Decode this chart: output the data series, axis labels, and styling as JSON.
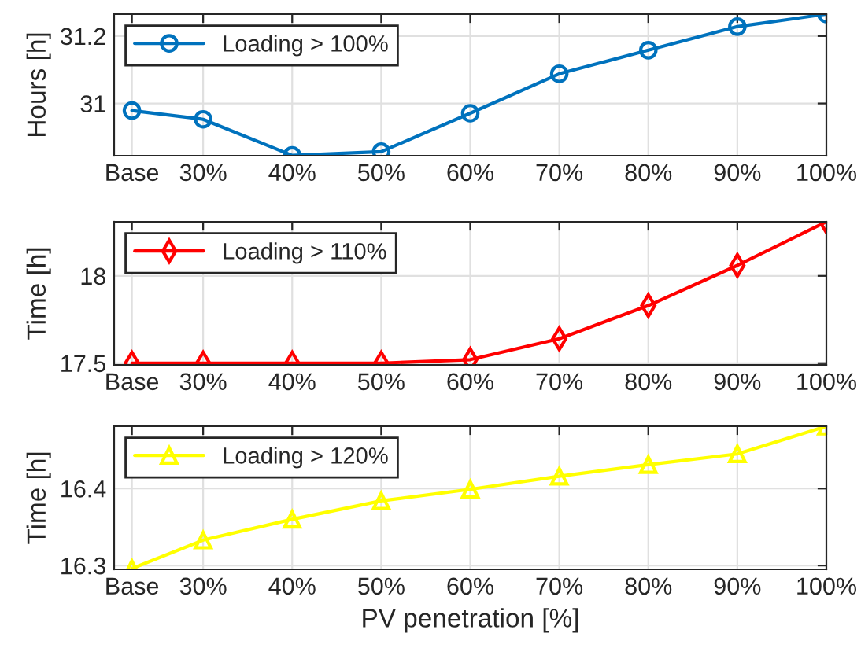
{
  "chart_data": [
    {
      "type": "line",
      "ylabel": "Hours [h]",
      "x": [
        22,
        30,
        40,
        50,
        60,
        70,
        80,
        90,
        100
      ],
      "series": [
        {
          "name": "Loading > 100%",
          "color": "#0072bd",
          "values": [
            30.979,
            30.953,
            30.846,
            30.857,
            30.971,
            31.088,
            31.158,
            31.228,
            31.265
          ]
        }
      ],
      "xlim": [
        20,
        100
      ],
      "xticks": [
        {
          "value": 22,
          "label": "Base"
        },
        {
          "value": 30,
          "label": "30%"
        },
        {
          "value": 40,
          "label": "40%"
        },
        {
          "value": 50,
          "label": "50%"
        },
        {
          "value": 60,
          "label": "60%"
        },
        {
          "value": 70,
          "label": "70%"
        },
        {
          "value": 80,
          "label": "80%"
        },
        {
          "value": 90,
          "label": "90%"
        },
        {
          "value": 100,
          "label": "100%"
        }
      ],
      "ylim": [
        30.845,
        31.265
      ],
      "yticks": [
        31,
        31.2
      ],
      "grid": true,
      "legend": "top left",
      "marker": "circle",
      "line_style": "solid"
    },
    {
      "type": "line",
      "ylabel": "Time [h]",
      "x": [
        22,
        30,
        40,
        50,
        60,
        70,
        80,
        90,
        100
      ],
      "series": [
        {
          "name": "Loading > 110%",
          "color": "#ff0000",
          "values": [
            17.5,
            17.5,
            17.5,
            17.5,
            17.52,
            17.64,
            17.83,
            18.06,
            18.31
          ]
        }
      ],
      "xlim": [
        20,
        100
      ],
      "xticks": [
        {
          "value": 22,
          "label": "Base"
        },
        {
          "value": 30,
          "label": "30%"
        },
        {
          "value": 40,
          "label": "40%"
        },
        {
          "value": 50,
          "label": "50%"
        },
        {
          "value": 60,
          "label": "60%"
        },
        {
          "value": 70,
          "label": "70%"
        },
        {
          "value": 80,
          "label": "80%"
        },
        {
          "value": 90,
          "label": "90%"
        },
        {
          "value": 100,
          "label": "100%"
        }
      ],
      "ylim": [
        17.49,
        18.31
      ],
      "yticks": [
        17.5,
        18
      ],
      "grid": true,
      "legend": "top left",
      "marker": "diamond",
      "line_style": "solid"
    },
    {
      "type": "line",
      "xlabel": "PV penetration [%]",
      "ylabel": "Time [h]",
      "x": [
        22,
        30,
        40,
        50,
        60,
        70,
        80,
        90,
        100
      ],
      "series": [
        {
          "name": "Loading > 120%",
          "color": "#ffff00",
          "values": [
            16.296,
            16.333,
            16.36,
            16.384,
            16.399,
            16.416,
            16.431,
            16.445,
            16.481
          ]
        }
      ],
      "xlim": [
        20,
        100
      ],
      "xticks": [
        {
          "value": 22,
          "label": "Base"
        },
        {
          "value": 30,
          "label": "30%"
        },
        {
          "value": 40,
          "label": "40%"
        },
        {
          "value": 50,
          "label": "50%"
        },
        {
          "value": 60,
          "label": "60%"
        },
        {
          "value": 70,
          "label": "70%"
        },
        {
          "value": 80,
          "label": "80%"
        },
        {
          "value": 90,
          "label": "90%"
        },
        {
          "value": 100,
          "label": "100%"
        }
      ],
      "ylim": [
        16.295,
        16.481
      ],
      "yticks": [
        16.3,
        16.4
      ],
      "grid": true,
      "legend": "top left",
      "marker": "triangle",
      "line_style": "solid"
    }
  ]
}
